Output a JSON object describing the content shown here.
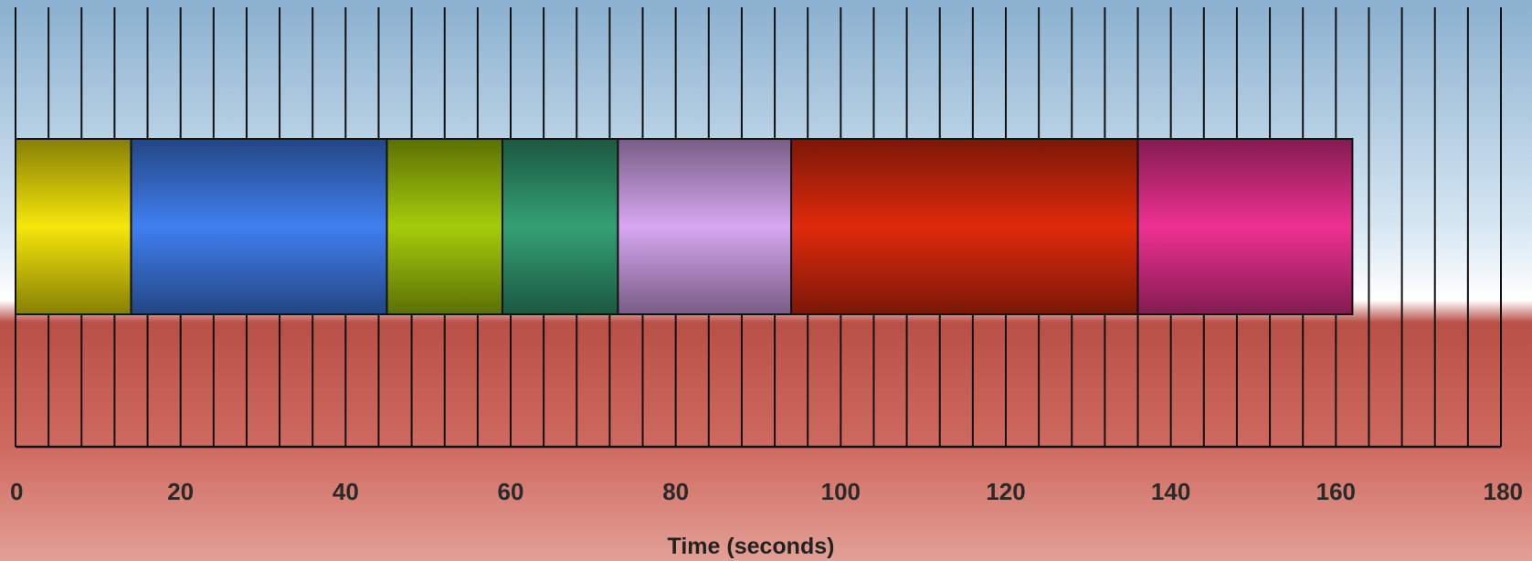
{
  "chart_data": {
    "type": "bar",
    "orientation": "horizontal",
    "stacked": true,
    "title": "",
    "xlabel": "Time (seconds)",
    "ylabel": "",
    "xlim": [
      0,
      180
    ],
    "x_ticks": [
      0,
      20,
      40,
      60,
      80,
      100,
      120,
      140,
      160,
      180
    ],
    "x_tick_labels": [
      "0",
      "20",
      "40",
      "60",
      "80",
      "100",
      "120",
      "140",
      "160",
      "180"
    ],
    "minor_gridline_step": 4,
    "grid": true,
    "legend": "none",
    "segments": [
      {
        "start": 0,
        "end": 14,
        "color": "#F5E60A"
      },
      {
        "start": 14,
        "end": 45,
        "color": "#3F7FF0"
      },
      {
        "start": 45,
        "end": 59,
        "color": "#A5CC0A"
      },
      {
        "start": 59,
        "end": 73,
        "color": "#33A074"
      },
      {
        "start": 73,
        "end": 94,
        "color": "#D8A8F2"
      },
      {
        "start": 94,
        "end": 136,
        "color": "#E02A0C"
      },
      {
        "start": 136,
        "end": 162,
        "color": "#EE3192"
      }
    ]
  }
}
